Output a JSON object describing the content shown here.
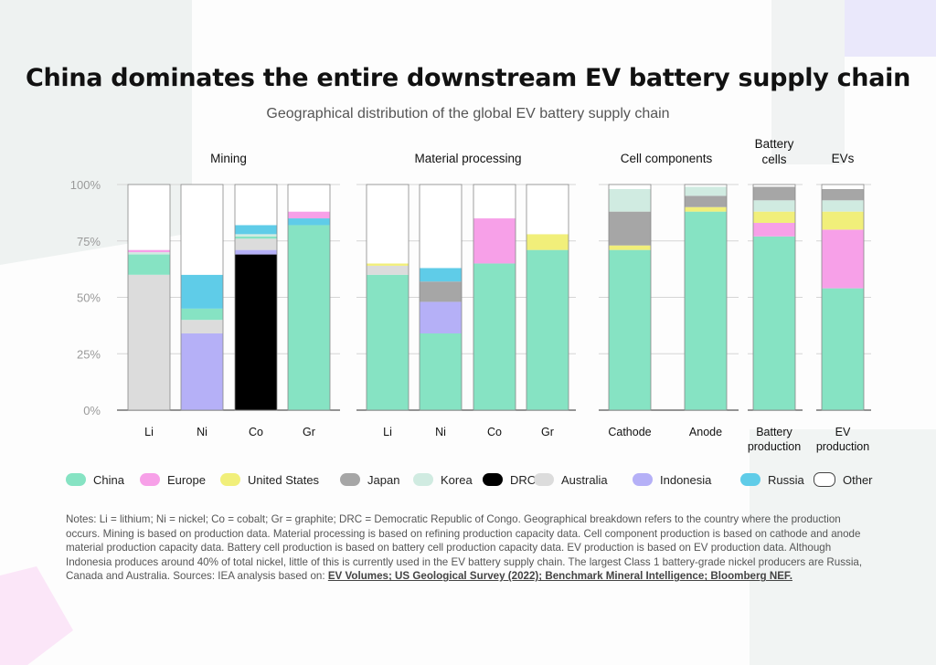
{
  "title": "China dominates the entire downstream EV battery supply chain",
  "subtitle": "Geographical distribution of the global EV battery supply chain",
  "colors": {
    "China": "#86e3c3",
    "Europe": "#f7a0e8",
    "United States": "#f1ef7a",
    "Japan": "#a6a6a6",
    "Korea": "#d0ebe1",
    "DRC": "#000000",
    "Australia": "#dcdcdc",
    "Indonesia": "#b5b0f7",
    "Russia": "#5fcce8",
    "Other": "#ffffff"
  },
  "legend": [
    {
      "label": "China",
      "key": "China"
    },
    {
      "label": "Europe",
      "key": "Europe"
    },
    {
      "label": "United States",
      "key": "United States"
    },
    {
      "label": "Japan",
      "key": "Japan"
    },
    {
      "label": "Korea",
      "key": "Korea"
    },
    {
      "label": "DRC",
      "key": "DRC"
    },
    {
      "label": "Australia",
      "key": "Australia"
    },
    {
      "label": "Indonesia",
      "key": "Indonesia"
    },
    {
      "label": "Russia",
      "key": "Russia"
    },
    {
      "label": "Other",
      "key": "Other"
    }
  ],
  "notes": {
    "text": "Notes: Li = lithium; Ni = nickel; Co = cobalt; Gr = graphite; DRC = Democratic Republic of Congo. Geographical breakdown refers to the country where the production occurs. Mining is based on production data. Material processing is based on refining production capacity data. Cell component production is based on cathode and anode material production capacity data. Battery cell production is based on battery cell production capacity data. EV production is based on EV production data. Although Indonesia produces around 40% of total nickel, little of this is currently used in the EV battery supply chain. The largest Class 1 battery-grade nickel producers are Russia, Canada and Australia. Sources: IEA analysis based on:",
    "source1": "EV Volumes; US Geological Survey (2022); Benchmark Mineral Intelligence; Bloomberg NEF."
  },
  "chart_data": {
    "type": "bar",
    "stacked": true,
    "ylim": [
      0,
      100
    ],
    "y_ticks": [
      "0%",
      "25%",
      "50%",
      "75%",
      "100%"
    ],
    "grid": true,
    "legend_position": "bottom",
    "panels": [
      {
        "name": "Mining",
        "bars": [
          {
            "label": "Li",
            "segments": [
              {
                "key": "Australia",
                "value": 60
              },
              {
                "key": "China",
                "value": 9
              },
              {
                "key": "Korea",
                "value": 1
              },
              {
                "key": "Europe",
                "value": 1
              },
              {
                "key": "Other",
                "value": 29
              }
            ]
          },
          {
            "label": "Ni",
            "segments": [
              {
                "key": "Indonesia",
                "value": 34
              },
              {
                "key": "Australia",
                "value": 6
              },
              {
                "key": "China",
                "value": 5
              },
              {
                "key": "Russia",
                "value": 15
              },
              {
                "key": "Other",
                "value": 40
              }
            ]
          },
          {
            "label": "Co",
            "segments": [
              {
                "key": "DRC",
                "value": 69
              },
              {
                "key": "Indonesia",
                "value": 2
              },
              {
                "key": "Australia",
                "value": 5
              },
              {
                "key": "China",
                "value": 1
              },
              {
                "key": "Korea",
                "value": 1
              },
              {
                "key": "Russia",
                "value": 4
              },
              {
                "key": "Other",
                "value": 18
              }
            ]
          },
          {
            "label": "Gr",
            "segments": [
              {
                "key": "China",
                "value": 82
              },
              {
                "key": "Russia",
                "value": 3
              },
              {
                "key": "Europe",
                "value": 3
              },
              {
                "key": "Other",
                "value": 12
              }
            ]
          }
        ]
      },
      {
        "name": "Material processing",
        "bars": [
          {
            "label": "Li",
            "segments": [
              {
                "key": "China",
                "value": 60
              },
              {
                "key": "Australia",
                "value": 4
              },
              {
                "key": "United States",
                "value": 1
              },
              {
                "key": "Other",
                "value": 35
              }
            ]
          },
          {
            "label": "Ni",
            "segments": [
              {
                "key": "China",
                "value": 34
              },
              {
                "key": "Indonesia",
                "value": 14
              },
              {
                "key": "Japan",
                "value": 9
              },
              {
                "key": "Russia",
                "value": 6
              },
              {
                "key": "Other",
                "value": 37
              }
            ]
          },
          {
            "label": "Co",
            "segments": [
              {
                "key": "China",
                "value": 65
              },
              {
                "key": "Europe",
                "value": 20
              },
              {
                "key": "Other",
                "value": 15
              }
            ]
          },
          {
            "label": "Gr",
            "segments": [
              {
                "key": "China",
                "value": 71
              },
              {
                "key": "United States",
                "value": 7
              },
              {
                "key": "Other",
                "value": 22
              }
            ]
          }
        ]
      },
      {
        "name": "Cell components",
        "bars": [
          {
            "label": "Cathode",
            "segments": [
              {
                "key": "China",
                "value": 71
              },
              {
                "key": "United States",
                "value": 2
              },
              {
                "key": "Japan",
                "value": 15
              },
              {
                "key": "Korea",
                "value": 10
              },
              {
                "key": "Other",
                "value": 2
              }
            ]
          },
          {
            "label": "Anode",
            "segments": [
              {
                "key": "China",
                "value": 88
              },
              {
                "key": "United States",
                "value": 2
              },
              {
                "key": "Japan",
                "value": 5
              },
              {
                "key": "Korea",
                "value": 4
              },
              {
                "key": "Other",
                "value": 1
              }
            ]
          }
        ]
      },
      {
        "name": "Battery cells",
        "bars": [
          {
            "label": "Battery production",
            "segments": [
              {
                "key": "China",
                "value": 77
              },
              {
                "key": "Europe",
                "value": 6
              },
              {
                "key": "United States",
                "value": 5
              },
              {
                "key": "Korea",
                "value": 5
              },
              {
                "key": "Japan",
                "value": 6
              },
              {
                "key": "Other",
                "value": 1
              }
            ]
          }
        ]
      },
      {
        "name": "EVs",
        "bars": [
          {
            "label": "EV production",
            "segments": [
              {
                "key": "China",
                "value": 54
              },
              {
                "key": "Europe",
                "value": 26
              },
              {
                "key": "United States",
                "value": 8
              },
              {
                "key": "Korea",
                "value": 5
              },
              {
                "key": "Japan",
                "value": 5
              },
              {
                "key": "Other",
                "value": 2
              }
            ]
          }
        ]
      }
    ]
  }
}
